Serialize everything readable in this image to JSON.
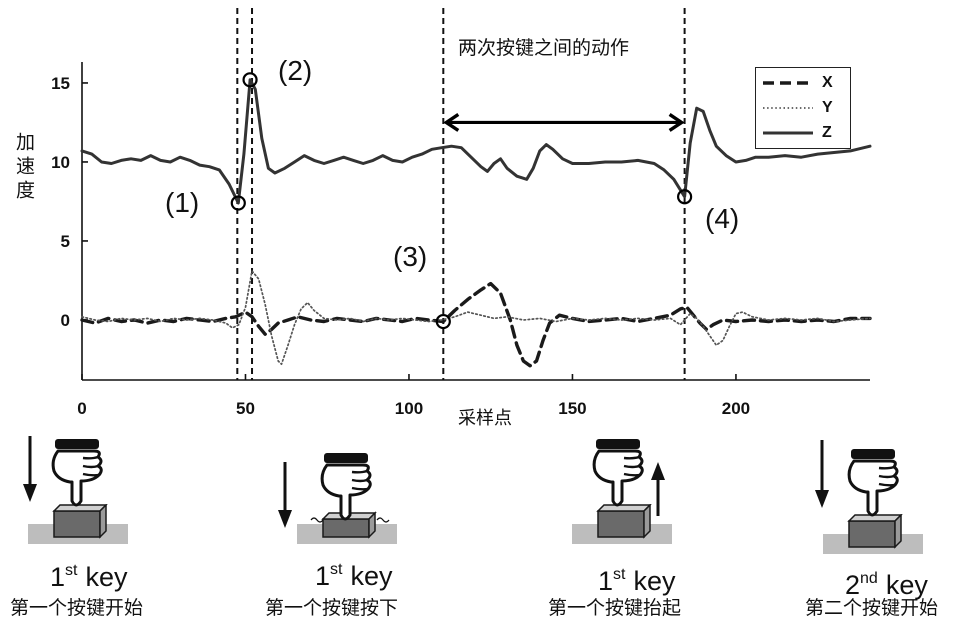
{
  "chart_data": {
    "type": "line",
    "xlabel": "采样点",
    "ylabel": "加速度",
    "xlim": [
      0,
      241
    ],
    "ylim": [
      -3.8,
      16.2
    ],
    "xticks": [
      0,
      50,
      100,
      150,
      200
    ],
    "yticks": [
      0,
      5,
      10,
      15
    ],
    "grid": false,
    "legend_position": "top-right",
    "series": [
      {
        "name": "X",
        "line_style": "dashed",
        "color": "#1a1a1a",
        "x": [
          0,
          4,
          8,
          12,
          16,
          20,
          24,
          28,
          32,
          36,
          40,
          44,
          47,
          50,
          52,
          54,
          56,
          58,
          60,
          63,
          66,
          70,
          74,
          78,
          82,
          86,
          90,
          94,
          98,
          102,
          106,
          110.5,
          114,
          118,
          122,
          125,
          128,
          131,
          133,
          135,
          137,
          139,
          141,
          143,
          146,
          150,
          155,
          160,
          165,
          170,
          175,
          180,
          183,
          185,
          187,
          189,
          191,
          193,
          196,
          200,
          205,
          210,
          215,
          220,
          225,
          230,
          235,
          241
        ],
        "y": [
          0.0,
          -0.2,
          0.1,
          -0.1,
          0.0,
          -0.2,
          0.0,
          -0.1,
          0.1,
          0.0,
          -0.1,
          0.1,
          0.2,
          0.5,
          0.2,
          -0.4,
          -0.9,
          -0.6,
          -0.2,
          0.0,
          0.2,
          0.0,
          -0.1,
          0.1,
          0.0,
          -0.1,
          0.1,
          0.0,
          -0.1,
          0.1,
          0.0,
          -0.1,
          0.6,
          1.3,
          1.9,
          2.3,
          1.7,
          0.0,
          -1.6,
          -2.6,
          -2.9,
          -2.6,
          -1.3,
          -0.2,
          0.3,
          0.1,
          -0.1,
          0.0,
          0.1,
          -0.1,
          0.1,
          0.3,
          0.7,
          0.8,
          0.3,
          -0.2,
          -0.6,
          -0.3,
          0.0,
          -0.1,
          0.0,
          -0.1,
          0.0,
          -0.1,
          0.0,
          -0.1,
          0.1,
          0.1
        ]
      },
      {
        "name": "Y",
        "line_style": "dotted",
        "color": "#555555",
        "x": [
          0,
          4,
          8,
          12,
          16,
          20,
          24,
          28,
          32,
          36,
          40,
          44,
          46,
          48,
          50,
          52,
          54,
          56,
          58,
          60,
          61,
          63,
          65,
          67,
          69,
          71,
          74,
          78,
          82,
          86,
          90,
          94,
          98,
          102,
          106,
          110,
          114,
          118,
          122,
          126,
          130,
          135,
          140,
          145,
          150,
          155,
          160,
          165,
          170,
          175,
          180,
          183,
          186,
          188,
          190,
          192,
          194,
          196,
          198,
          200,
          202,
          205,
          210,
          215,
          220,
          225,
          230,
          235,
          241
        ],
        "y": [
          0.2,
          0.0,
          -0.1,
          0.1,
          0.0,
          0.1,
          -0.1,
          0.1,
          0.0,
          0.1,
          0.0,
          -0.2,
          -0.5,
          -0.3,
          0.8,
          3.1,
          2.6,
          1.0,
          -1.0,
          -2.6,
          -2.8,
          -1.6,
          -0.3,
          0.7,
          1.1,
          0.6,
          0.1,
          0.0,
          0.1,
          -0.1,
          0.1,
          0.0,
          0.1,
          0.0,
          -0.1,
          0.0,
          0.2,
          0.5,
          0.3,
          0.1,
          0.2,
          0.0,
          0.1,
          -0.1,
          0.1,
          0.0,
          0.1,
          0.0,
          0.1,
          0.0,
          0.1,
          -0.3,
          0.4,
          0.1,
          -0.4,
          -1.0,
          -1.6,
          -1.3,
          -0.4,
          0.4,
          0.5,
          0.2,
          0.0,
          0.1,
          0.0,
          0.1,
          -0.1,
          0.0,
          0.1
        ]
      },
      {
        "name": "Z",
        "line_style": "solid",
        "color": "#333333",
        "x": [
          0,
          3,
          6,
          9,
          12,
          15,
          18,
          21,
          24,
          27,
          30,
          33,
          36,
          39,
          42,
          45,
          47.8,
          49.5,
          51.4,
          53,
          55,
          57,
          59,
          62,
          65,
          68,
          71,
          74,
          77,
          80,
          83,
          86,
          89,
          92,
          95,
          98,
          101,
          104,
          107,
          110,
          113,
          116,
          119,
          122,
          124,
          126,
          128,
          130,
          133,
          136,
          138,
          140,
          142,
          144,
          147,
          150,
          155,
          160,
          165,
          170,
          175,
          178,
          181,
          184.3,
          186,
          188,
          190,
          192,
          194,
          197,
          200,
          203,
          206,
          210,
          215,
          220,
          225,
          230,
          235,
          241
        ],
        "y": [
          10.7,
          10.5,
          10.0,
          9.9,
          10.1,
          10.2,
          10.1,
          10.4,
          10.1,
          10.0,
          10.3,
          10.1,
          9.8,
          9.7,
          9.5,
          8.6,
          7.4,
          10.5,
          15.2,
          14.6,
          11.5,
          9.6,
          9.3,
          9.6,
          10.0,
          10.4,
          10.1,
          9.9,
          10.1,
          10.3,
          10.1,
          9.9,
          10.1,
          10.4,
          10.1,
          10.0,
          10.3,
          10.5,
          10.8,
          10.9,
          11.0,
          10.9,
          10.3,
          9.7,
          9.4,
          9.9,
          10.2,
          9.6,
          9.1,
          8.9,
          9.6,
          10.7,
          11.1,
          10.8,
          10.2,
          9.9,
          9.9,
          10.0,
          10.0,
          10.1,
          9.9,
          9.5,
          8.9,
          7.8,
          11.2,
          13.4,
          13.2,
          12.0,
          11.0,
          10.4,
          10.0,
          10.1,
          10.3,
          10.3,
          10.4,
          10.3,
          10.5,
          10.6,
          10.7,
          11.0
        ]
      }
    ],
    "vertical_lines_x": [
      47.5,
      52,
      110.5,
      184.3
    ],
    "markers": [
      {
        "label": "(1)",
        "x": 47.8,
        "y": 7.4
      },
      {
        "label": "(2)",
        "x": 51.4,
        "y": 15.2
      },
      {
        "label": "(3)",
        "x": 110.5,
        "y": -0.1
      },
      {
        "label": "(4)",
        "x": 184.3,
        "y": 7.8
      }
    ],
    "span_annotation": {
      "label": "两次按键之间的动作",
      "x_start": 110.5,
      "x_end": 184.3,
      "y": 12.5
    }
  },
  "panels": [
    {
      "ordinal_number": "1",
      "ordinal_suffix": "st",
      "key_word": "key",
      "caption": "第一个按键开始",
      "arrow_icon": "down-arrow-icon",
      "hand_icon": "pointing-hand-icon",
      "key_icon": "key-icon"
    },
    {
      "ordinal_number": "1",
      "ordinal_suffix": "st",
      "key_word": "key",
      "caption": "第一个按键按下",
      "arrow_icon": "down-arrow-icon",
      "hand_icon": "pointing-hand-icon",
      "key_icon": "key-icon"
    },
    {
      "ordinal_number": "1",
      "ordinal_suffix": "st",
      "key_word": "key",
      "caption": "第一个按键抬起",
      "arrow_icon": "up-arrow-icon",
      "hand_icon": "pointing-hand-icon",
      "key_icon": "key-icon"
    },
    {
      "ordinal_number": "2",
      "ordinal_suffix": "nd",
      "key_word": "key",
      "caption": "第二个按键开始",
      "arrow_icon": "down-arrow-icon",
      "hand_icon": "pointing-hand-icon",
      "key_icon": "key-icon"
    }
  ]
}
